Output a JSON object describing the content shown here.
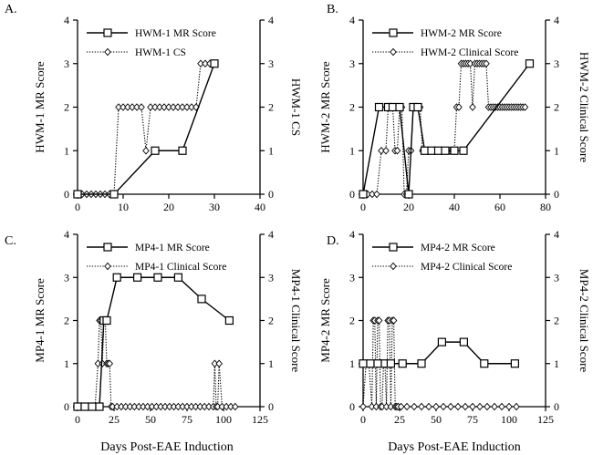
{
  "figure": {
    "x_axis_title": "Days Post-EAE Induction"
  },
  "chart_data": [
    {
      "type": "line",
      "panel_label": "A.",
      "xlim": [
        0,
        40
      ],
      "xticks": [
        0,
        10,
        20,
        30,
        40
      ],
      "ylim": [
        0,
        4
      ],
      "yticks": [
        0,
        1,
        2,
        3,
        4
      ],
      "ylabel_left": "HWM-1 MR Score",
      "ylabel_right": "HWM-1 CS",
      "series": [
        {
          "name": "HWM-1 MR Score",
          "style": "solid-square",
          "x": [
            0,
            8,
            17,
            23,
            30
          ],
          "y": [
            0,
            0,
            1,
            1,
            3
          ]
        },
        {
          "name": "HWM-1 CS",
          "style": "dotted-diamond",
          "x": [
            0,
            1,
            2,
            3,
            4,
            5,
            6,
            7,
            8,
            9,
            10,
            11,
            12,
            13,
            14,
            15,
            16,
            17,
            18,
            19,
            20,
            21,
            22,
            23,
            24,
            25,
            26,
            27,
            28,
            29
          ],
          "y": [
            0,
            0,
            0,
            0,
            0,
            0,
            0,
            0,
            0,
            2,
            2,
            2,
            2,
            2,
            2,
            1,
            2,
            2,
            2,
            2,
            2,
            2,
            2,
            2,
            2,
            2,
            2,
            3,
            3,
            3
          ]
        }
      ]
    },
    {
      "type": "line",
      "panel_label": "B.",
      "xlim": [
        0,
        80
      ],
      "xticks": [
        0,
        20,
        40,
        60,
        80
      ],
      "ylim": [
        0,
        4
      ],
      "yticks": [
        0,
        1,
        2,
        3,
        4
      ],
      "ylabel_left": "HWM-2 MR Score",
      "ylabel_right": "HWM-2 Clinical Score",
      "series": [
        {
          "name": "HWM-2 MR Score",
          "style": "solid-square",
          "x": [
            0,
            7,
            11,
            13,
            16,
            20,
            22,
            24,
            27,
            30,
            33,
            36,
            40,
            44,
            73
          ],
          "y": [
            0,
            2,
            2,
            2,
            2,
            0,
            2,
            2,
            1,
            1,
            1,
            1,
            1,
            1,
            3
          ]
        },
        {
          "name": "HWM-2 Clinical Score",
          "style": "dotted-diamond",
          "x": [
            0,
            2,
            4,
            6,
            8,
            10,
            11,
            12,
            13,
            14,
            15,
            16,
            17,
            18,
            19,
            20,
            21,
            22,
            23,
            24,
            25,
            26,
            27,
            28,
            29,
            30,
            31,
            32,
            33,
            34,
            35,
            36,
            37,
            38,
            39,
            40,
            41,
            42,
            43,
            44,
            45,
            46,
            47,
            48,
            49,
            50,
            51,
            52,
            53,
            54,
            55,
            56,
            57,
            58,
            59,
            60,
            61,
            62,
            63,
            64,
            65,
            66,
            67,
            68,
            69,
            70,
            71
          ],
          "y": [
            0,
            0,
            0,
            0,
            1,
            1,
            2,
            2,
            2,
            1,
            1,
            2,
            2,
            0,
            0,
            1,
            1,
            2,
            2,
            2,
            2,
            1,
            1,
            1,
            1,
            1,
            1,
            1,
            1,
            1,
            1,
            1,
            1,
            1,
            1,
            1,
            2,
            2,
            3,
            3,
            3,
            3,
            3,
            2,
            3,
            3,
            3,
            3,
            3,
            3,
            2,
            2,
            2,
            2,
            2,
            2,
            2,
            2,
            2,
            2,
            2,
            2,
            2,
            2,
            2,
            2,
            2
          ]
        }
      ]
    },
    {
      "type": "line",
      "panel_label": "C.",
      "xlim": [
        0,
        125
      ],
      "xticks": [
        0,
        25,
        50,
        75,
        100,
        125
      ],
      "ylim": [
        0,
        4
      ],
      "yticks": [
        0,
        1,
        2,
        3,
        4
      ],
      "ylabel_left": "MP4-1 MR Score",
      "ylabel_right": "MP4-1 Clinical Score",
      "series": [
        {
          "name": "MP4-1 MR Score",
          "style": "solid-square",
          "x": [
            0,
            5,
            10,
            15,
            18,
            20,
            27,
            41,
            55,
            69,
            85,
            104
          ],
          "y": [
            0,
            0,
            0,
            0,
            2,
            2,
            3,
            3,
            3,
            3,
            2.5,
            2
          ]
        },
        {
          "name": "MP4-1 Clinical Score",
          "style": "dotted-diamond",
          "x": [
            0,
            3,
            6,
            9,
            12,
            14,
            15,
            16,
            17,
            18,
            19,
            20,
            21,
            22,
            23,
            24,
            27,
            30,
            33,
            36,
            39,
            42,
            45,
            48,
            51,
            54,
            57,
            60,
            63,
            66,
            69,
            72,
            75,
            78,
            81,
            84,
            87,
            90,
            93,
            94,
            95,
            96,
            97,
            99,
            102,
            105,
            108
          ],
          "y": [
            0,
            0,
            0,
            0,
            0,
            1,
            2,
            2,
            1,
            2,
            2,
            1,
            1,
            1,
            0,
            0,
            0,
            0,
            0,
            0,
            0,
            0,
            0,
            0,
            0,
            0,
            0,
            0,
            0,
            0,
            0,
            0,
            0,
            0,
            0,
            0,
            0,
            0,
            0,
            1,
            0,
            0,
            1,
            0,
            0,
            0,
            0
          ]
        }
      ]
    },
    {
      "type": "line",
      "panel_label": "D.",
      "xlim": [
        0,
        125
      ],
      "xticks": [
        0,
        25,
        50,
        75,
        100,
        125
      ],
      "ylim": [
        0,
        4
      ],
      "yticks": [
        0,
        1,
        2,
        3,
        4
      ],
      "ylabel_left": "MP4-2 MR Score",
      "ylabel_right": "MP4-2 Clinical Score",
      "series": [
        {
          "name": "MP4-2 MR Score",
          "style": "solid-square",
          "x": [
            0,
            5,
            10,
            15,
            19,
            27,
            40,
            54,
            69,
            83,
            104
          ],
          "y": [
            1,
            1,
            1,
            1,
            1,
            1,
            1,
            1.5,
            1.5,
            1,
            1
          ]
        },
        {
          "name": "MP4-2 Clinical Score",
          "style": "dotted-diamond",
          "x": [
            0,
            2,
            4,
            6,
            7,
            8,
            9,
            10,
            11,
            12,
            13,
            14,
            15,
            16,
            17,
            18,
            19,
            20,
            21,
            22,
            23,
            24,
            26,
            30,
            35,
            40,
            45,
            50,
            55,
            60,
            65,
            70,
            75,
            80,
            85,
            90,
            95,
            100,
            105
          ],
          "y": [
            0,
            1,
            1,
            0,
            2,
            2,
            0,
            2,
            2,
            0,
            0,
            1,
            1,
            0,
            2,
            2,
            0,
            2,
            2,
            0,
            0,
            0,
            0,
            0,
            0,
            0,
            0,
            0,
            0,
            0,
            0,
            0,
            0,
            0,
            0,
            0,
            0,
            0,
            0
          ]
        }
      ]
    }
  ]
}
